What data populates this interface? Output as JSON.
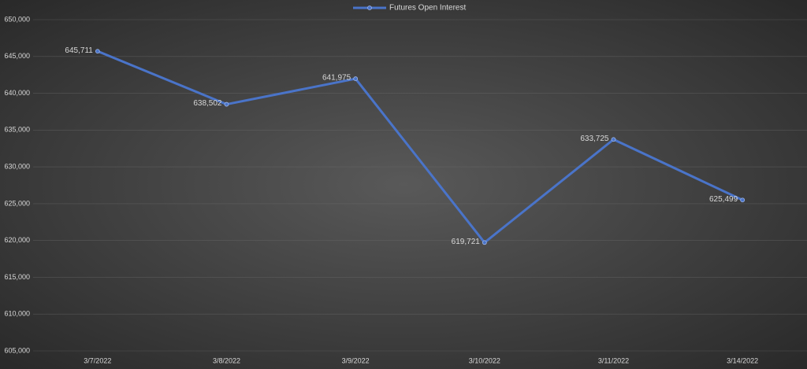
{
  "chart_data": {
    "type": "line",
    "categories": [
      "3/7/2022",
      "3/8/2022",
      "3/9/2022",
      "3/10/2022",
      "3/11/2022",
      "3/14/2022"
    ],
    "series": [
      {
        "name": "Futures Open Interest",
        "color": "#4a74c9",
        "values": [
          645711,
          638502,
          641975,
          619721,
          633725,
          625499
        ],
        "value_labels": [
          "645,711",
          "638,502",
          "641,975",
          "619,721",
          "633,725",
          "625,499"
        ]
      }
    ],
    "ylim": [
      605000,
      650000
    ],
    "yticks": [
      {
        "value": 605000,
        "label": "605,000"
      },
      {
        "value": 610000,
        "label": "610,000"
      },
      {
        "value": 615000,
        "label": "615,000"
      },
      {
        "value": 620000,
        "label": "620,000"
      },
      {
        "value": 625000,
        "label": "625,000"
      },
      {
        "value": 630000,
        "label": "630,000"
      },
      {
        "value": 635000,
        "label": "635,000"
      },
      {
        "value": 640000,
        "label": "640,000"
      },
      {
        "value": 645000,
        "label": "645,000"
      },
      {
        "value": 650000,
        "label": "650,000"
      }
    ],
    "grid": true,
    "legend": "top"
  }
}
